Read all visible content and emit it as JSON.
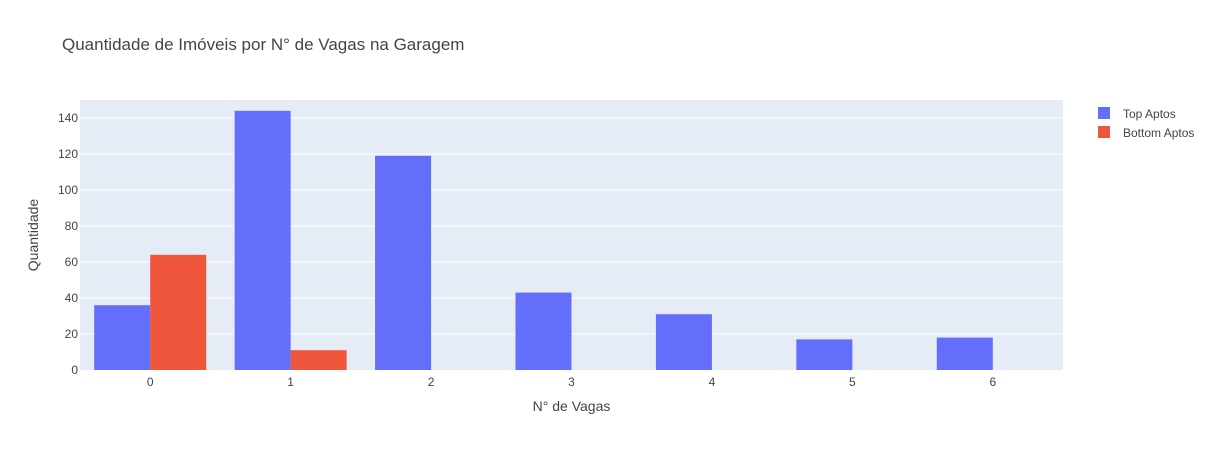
{
  "chart_data": {
    "type": "bar",
    "title": "Quantidade de Imóveis por N° de Vagas na Garagem",
    "xlabel": "N° de Vagas",
    "ylabel": "Quantidade",
    "categories": [
      "0",
      "1",
      "2",
      "3",
      "4",
      "5",
      "6"
    ],
    "series": [
      {
        "name": "Top Aptos",
        "color": "#636efa",
        "values": [
          36,
          144,
          119,
          43,
          31,
          17,
          18
        ]
      },
      {
        "name": "Bottom Aptos",
        "color": "#ef553b",
        "values": [
          64,
          11,
          0,
          0,
          0,
          0,
          0
        ]
      }
    ],
    "ylim": [
      0,
      150
    ],
    "yticks": [
      0,
      20,
      40,
      60,
      80,
      100,
      120,
      140
    ],
    "grid": true,
    "legend_position": "top-right",
    "plot_background": "#e5ecf6"
  }
}
